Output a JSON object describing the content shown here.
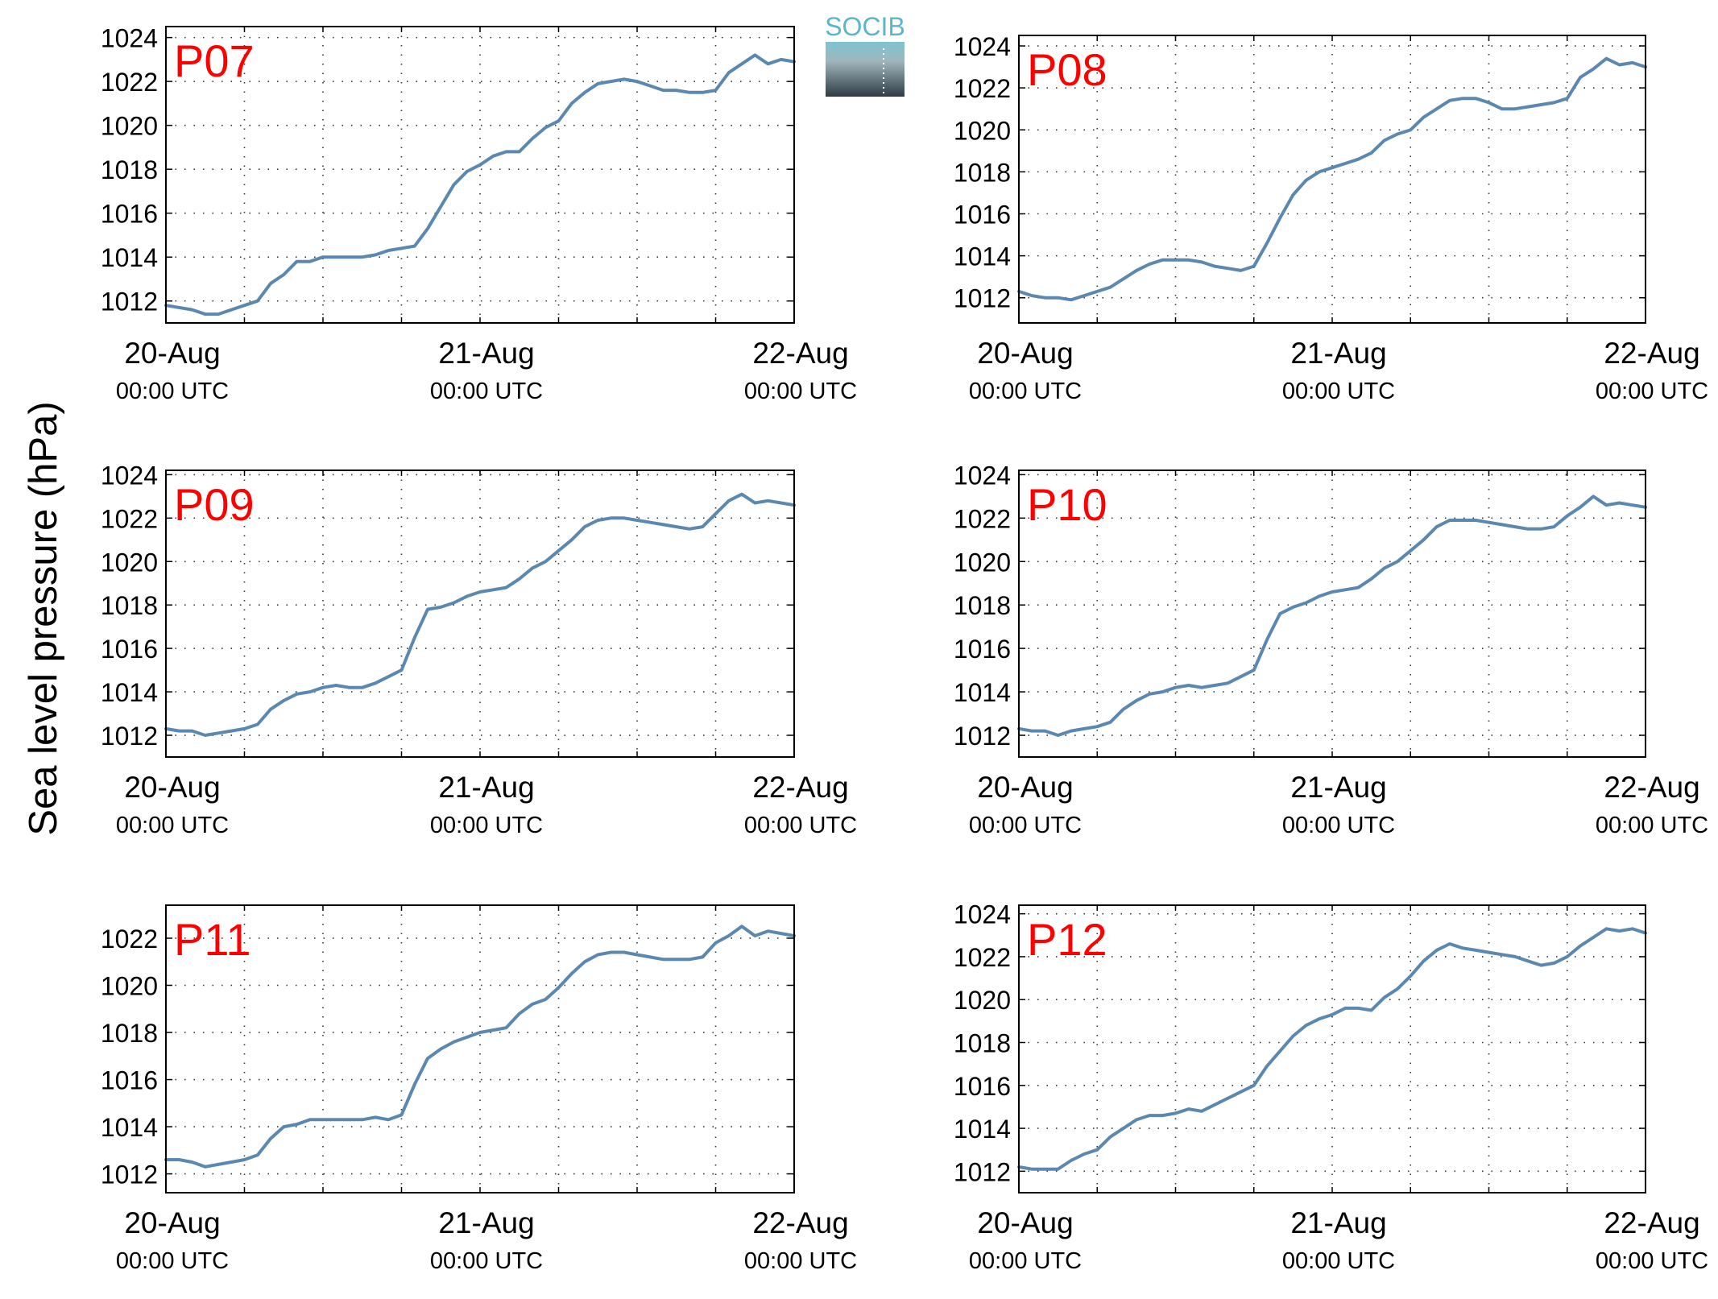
{
  "figure": {
    "ylabel": "Sea level pressure (hPa)",
    "logo_text": "SOCIB"
  },
  "style": {
    "line_color": "#5b88b0",
    "label_color": "#ff0000",
    "grid": "dotted"
  },
  "chart_data": [
    {
      "type": "line",
      "station": "P07",
      "ylim": [
        1011,
        1024.5
      ],
      "yticks": [
        1012,
        1014,
        1016,
        1018,
        1020,
        1022,
        1024
      ],
      "xlim": [
        0,
        48
      ],
      "xticks": [
        {
          "x": 0,
          "date": "20-Aug",
          "time": "00:00 UTC"
        },
        {
          "x": 24,
          "date": "21-Aug",
          "time": "00:00 UTC"
        },
        {
          "x": 48,
          "date": "22-Aug",
          "time": "00:00 UTC"
        }
      ],
      "grid": true,
      "series": [
        {
          "x": [
            0,
            2,
            3,
            4,
            5,
            6,
            7,
            8,
            9,
            10,
            11,
            12,
            13,
            14,
            15,
            16,
            17,
            18,
            19,
            20,
            21,
            22,
            23,
            24,
            25,
            26,
            27,
            28,
            29,
            30,
            31,
            32,
            33,
            34,
            35,
            36,
            37,
            38,
            39,
            40,
            41,
            42,
            43,
            44,
            45,
            46,
            47,
            48
          ],
          "y": [
            1011.8,
            1011.6,
            1011.4,
            1011.4,
            1011.6,
            1011.8,
            1012.0,
            1012.8,
            1013.2,
            1013.8,
            1013.8,
            1014.0,
            1014.0,
            1014.0,
            1014.0,
            1014.1,
            1014.3,
            1014.4,
            1014.5,
            1015.3,
            1016.3,
            1017.3,
            1017.9,
            1018.2,
            1018.6,
            1018.8,
            1018.8,
            1019.4,
            1019.9,
            1020.2,
            1021.0,
            1021.5,
            1021.9,
            1022.0,
            1022.1,
            1022.0,
            1021.8,
            1021.6,
            1021.6,
            1021.5,
            1021.5,
            1021.6,
            1022.4,
            1022.8,
            1023.2,
            1022.8,
            1023.0,
            1022.9
          ]
        }
      ]
    },
    {
      "type": "line",
      "station": "P08",
      "ylim": [
        1010.8,
        1024.5
      ],
      "yticks": [
        1012,
        1014,
        1016,
        1018,
        1020,
        1022,
        1024
      ],
      "xlim": [
        0,
        48
      ],
      "xticks": [
        {
          "x": 0,
          "date": "20-Aug",
          "time": "00:00 UTC"
        },
        {
          "x": 24,
          "date": "21-Aug",
          "time": "00:00 UTC"
        },
        {
          "x": 48,
          "date": "22-Aug",
          "time": "00:00 UTC"
        }
      ],
      "grid": true,
      "series": [
        {
          "x": [
            0,
            1,
            2,
            3,
            4,
            5,
            6,
            7,
            8,
            9,
            10,
            11,
            12,
            13,
            14,
            15,
            16,
            17,
            18,
            19,
            20,
            21,
            22,
            23,
            24,
            25,
            26,
            27,
            28,
            29,
            30,
            31,
            32,
            33,
            34,
            35,
            36,
            37,
            38,
            39,
            40,
            41,
            42,
            43,
            44,
            45,
            46,
            47,
            48
          ],
          "y": [
            1012.3,
            1012.1,
            1012.0,
            1012.0,
            1011.9,
            1012.1,
            1012.3,
            1012.5,
            1012.9,
            1013.3,
            1013.6,
            1013.8,
            1013.8,
            1013.8,
            1013.7,
            1013.5,
            1013.4,
            1013.3,
            1013.5,
            1014.6,
            1015.8,
            1016.9,
            1017.6,
            1018.0,
            1018.2,
            1018.4,
            1018.6,
            1018.9,
            1019.5,
            1019.8,
            1020.0,
            1020.6,
            1021.0,
            1021.4,
            1021.5,
            1021.5,
            1021.3,
            1021.0,
            1021.0,
            1021.1,
            1021.2,
            1021.3,
            1021.5,
            1022.5,
            1022.9,
            1023.4,
            1023.1,
            1023.2,
            1023.0
          ]
        }
      ]
    },
    {
      "type": "line",
      "station": "P09",
      "ylim": [
        1011,
        1024.2
      ],
      "yticks": [
        1012,
        1014,
        1016,
        1018,
        1020,
        1022,
        1024
      ],
      "xlim": [
        0,
        48
      ],
      "xticks": [
        {
          "x": 0,
          "date": "20-Aug",
          "time": "00:00 UTC"
        },
        {
          "x": 24,
          "date": "21-Aug",
          "time": "00:00 UTC"
        },
        {
          "x": 48,
          "date": "22-Aug",
          "time": "00:00 UTC"
        }
      ],
      "grid": true,
      "series": [
        {
          "x": [
            0,
            1,
            2,
            3,
            4,
            5,
            6,
            7,
            8,
            9,
            10,
            11,
            12,
            13,
            14,
            15,
            16,
            17,
            18,
            19,
            20,
            21,
            22,
            23,
            24,
            25,
            26,
            27,
            28,
            29,
            30,
            31,
            32,
            33,
            34,
            35,
            36,
            37,
            38,
            39,
            40,
            41,
            42,
            43,
            44,
            45,
            46,
            47,
            48
          ],
          "y": [
            1012.3,
            1012.2,
            1012.2,
            1012.0,
            1012.1,
            1012.2,
            1012.3,
            1012.5,
            1013.2,
            1013.6,
            1013.9,
            1014.0,
            1014.2,
            1014.3,
            1014.2,
            1014.2,
            1014.4,
            1014.7,
            1015.0,
            1016.5,
            1017.8,
            1017.9,
            1018.1,
            1018.4,
            1018.6,
            1018.7,
            1018.8,
            1019.2,
            1019.7,
            1020.0,
            1020.5,
            1021.0,
            1021.6,
            1021.9,
            1022.0,
            1022.0,
            1021.9,
            1021.8,
            1021.7,
            1021.6,
            1021.5,
            1021.6,
            1022.2,
            1022.8,
            1023.1,
            1022.7,
            1022.8,
            1022.7,
            1022.6
          ]
        }
      ]
    },
    {
      "type": "line",
      "station": "P10",
      "ylim": [
        1011,
        1024.2
      ],
      "yticks": [
        1012,
        1014,
        1016,
        1018,
        1020,
        1022,
        1024
      ],
      "xlim": [
        0,
        48
      ],
      "xticks": [
        {
          "x": 0,
          "date": "20-Aug",
          "time": "00:00 UTC"
        },
        {
          "x": 24,
          "date": "21-Aug",
          "time": "00:00 UTC"
        },
        {
          "x": 48,
          "date": "22-Aug",
          "time": "00:00 UTC"
        }
      ],
      "grid": true,
      "series": [
        {
          "x": [
            0,
            1,
            2,
            3,
            4,
            5,
            6,
            7,
            8,
            9,
            10,
            11,
            12,
            13,
            14,
            15,
            16,
            17,
            18,
            19,
            20,
            21,
            22,
            23,
            24,
            25,
            26,
            27,
            28,
            29,
            30,
            31,
            32,
            33,
            34,
            35,
            36,
            37,
            38,
            39,
            40,
            41,
            42,
            43,
            44,
            45,
            46,
            47,
            48
          ],
          "y": [
            1012.3,
            1012.2,
            1012.2,
            1012.0,
            1012.2,
            1012.3,
            1012.4,
            1012.6,
            1013.2,
            1013.6,
            1013.9,
            1014.0,
            1014.2,
            1014.3,
            1014.2,
            1014.3,
            1014.4,
            1014.7,
            1015.0,
            1016.4,
            1017.6,
            1017.9,
            1018.1,
            1018.4,
            1018.6,
            1018.7,
            1018.8,
            1019.2,
            1019.7,
            1020.0,
            1020.5,
            1021.0,
            1021.6,
            1021.9,
            1021.9,
            1021.9,
            1021.8,
            1021.7,
            1021.6,
            1021.5,
            1021.5,
            1021.6,
            1022.1,
            1022.5,
            1023.0,
            1022.6,
            1022.7,
            1022.6,
            1022.5
          ]
        }
      ]
    },
    {
      "type": "line",
      "station": "P11",
      "ylim": [
        1011.2,
        1023.4
      ],
      "yticks": [
        1012,
        1014,
        1016,
        1018,
        1020,
        1022
      ],
      "xlim": [
        0,
        48
      ],
      "xticks": [
        {
          "x": 0,
          "date": "20-Aug",
          "time": "00:00 UTC"
        },
        {
          "x": 24,
          "date": "21-Aug",
          "time": "00:00 UTC"
        },
        {
          "x": 48,
          "date": "22-Aug",
          "time": "00:00 UTC"
        }
      ],
      "grid": true,
      "series": [
        {
          "x": [
            0,
            1,
            2,
            3,
            4,
            5,
            6,
            7,
            8,
            9,
            10,
            11,
            12,
            13,
            14,
            15,
            16,
            17,
            18,
            19,
            20,
            21,
            22,
            23,
            24,
            25,
            26,
            27,
            28,
            29,
            30,
            31,
            32,
            33,
            34,
            35,
            36,
            37,
            38,
            39,
            40,
            41,
            42,
            43,
            44,
            45,
            46,
            47,
            48
          ],
          "y": [
            1012.6,
            1012.6,
            1012.5,
            1012.3,
            1012.4,
            1012.5,
            1012.6,
            1012.8,
            1013.5,
            1014.0,
            1014.1,
            1014.3,
            1014.3,
            1014.3,
            1014.3,
            1014.3,
            1014.4,
            1014.3,
            1014.5,
            1015.8,
            1016.9,
            1017.3,
            1017.6,
            1017.8,
            1018.0,
            1018.1,
            1018.2,
            1018.8,
            1019.2,
            1019.4,
            1019.9,
            1020.5,
            1021.0,
            1021.3,
            1021.4,
            1021.4,
            1021.3,
            1021.2,
            1021.1,
            1021.1,
            1021.1,
            1021.2,
            1021.8,
            1022.1,
            1022.5,
            1022.1,
            1022.3,
            1022.2,
            1022.1
          ]
        }
      ]
    },
    {
      "type": "line",
      "station": "P12",
      "ylim": [
        1011,
        1024.4
      ],
      "yticks": [
        1012,
        1014,
        1016,
        1018,
        1020,
        1022,
        1024
      ],
      "xlim": [
        0,
        48
      ],
      "xticks": [
        {
          "x": 0,
          "date": "20-Aug",
          "time": "00:00 UTC"
        },
        {
          "x": 24,
          "date": "21-Aug",
          "time": "00:00 UTC"
        },
        {
          "x": 48,
          "date": "22-Aug",
          "time": "00:00 UTC"
        }
      ],
      "grid": true,
      "series": [
        {
          "x": [
            0,
            1,
            2,
            3,
            4,
            5,
            6,
            7,
            8,
            9,
            10,
            11,
            12,
            13,
            14,
            15,
            16,
            17,
            18,
            19,
            20,
            21,
            22,
            23,
            24,
            25,
            26,
            27,
            28,
            29,
            30,
            31,
            32,
            33,
            34,
            35,
            36,
            37,
            38,
            39,
            40,
            41,
            42,
            43,
            44,
            45,
            46,
            47,
            48
          ],
          "y": [
            1012.2,
            1012.1,
            1012.1,
            1012.1,
            1012.5,
            1012.8,
            1013.0,
            1013.6,
            1014.0,
            1014.4,
            1014.6,
            1014.6,
            1014.7,
            1014.9,
            1014.8,
            1015.1,
            1015.4,
            1015.7,
            1016.0,
            1016.9,
            1017.6,
            1018.3,
            1018.8,
            1019.1,
            1019.3,
            1019.6,
            1019.6,
            1019.5,
            1020.1,
            1020.5,
            1021.1,
            1021.8,
            1022.3,
            1022.6,
            1022.4,
            1022.3,
            1022.2,
            1022.1,
            1022.0,
            1021.8,
            1021.6,
            1021.7,
            1022.0,
            1022.5,
            1022.9,
            1023.3,
            1023.2,
            1023.3,
            1023.1
          ]
        }
      ]
    }
  ]
}
